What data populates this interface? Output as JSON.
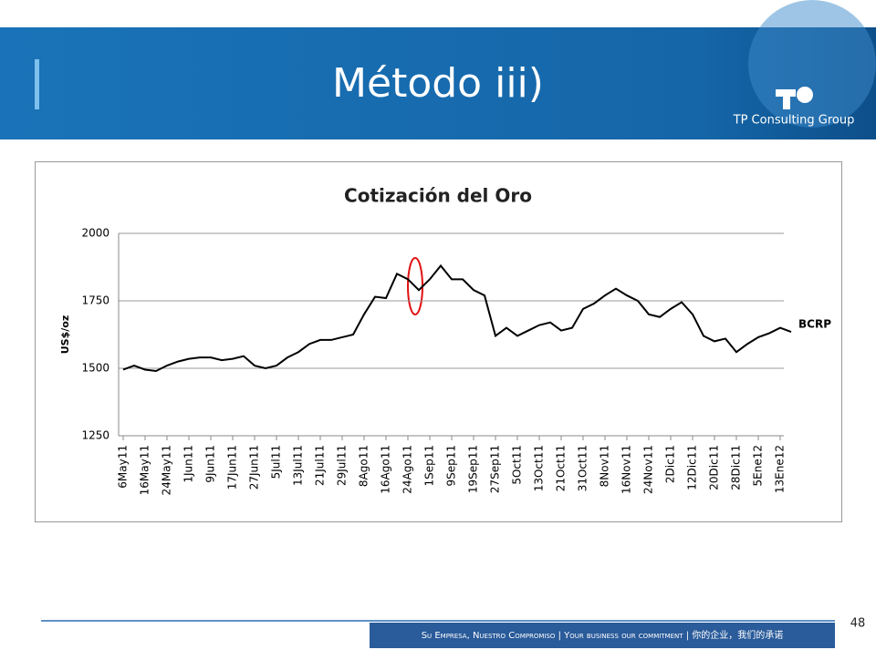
{
  "slide": {
    "title": "Método iii)",
    "logo": "TP Consulting Group",
    "page_number": "48",
    "footer": "Su Empresa, Nuestro Compromiso | Your business our commitment | 你的企业，我们的承诺"
  },
  "chart_data": {
    "type": "line",
    "title": "Cotización del Oro",
    "ylabel": "US$/oz",
    "categories": [
      "6May11",
      null,
      "16May11",
      null,
      "24May11",
      null,
      "1Jun11",
      null,
      "9Jun11",
      null,
      "17Jun11",
      null,
      "27Jun11",
      null,
      "5Jul11",
      null,
      "13Jul11",
      null,
      "21Jul11",
      null,
      "29Jul11",
      null,
      "8Ago11",
      null,
      "16Ago11",
      null,
      "24Ago11",
      null,
      "1Sep11",
      null,
      "9Sep11",
      null,
      "19Sep11",
      null,
      "27Sep11",
      null,
      "5Oct11",
      null,
      "13Oct11",
      null,
      "21Oct11",
      null,
      "31Oct11",
      null,
      "8Nov11",
      null,
      "16Nov11",
      null,
      "24Nov11",
      null,
      "2Dic11",
      null,
      "12Dic11",
      null,
      "20Dic11",
      null,
      "28Dic11",
      null,
      "5Ene12",
      null,
      "13Ene12",
      null
    ],
    "series": [
      {
        "name": "BCRP",
        "color": "#000000",
        "values": [
          1495,
          1510,
          1495,
          1490,
          1510,
          1525,
          1535,
          1540,
          1540,
          1530,
          1535,
          1545,
          1510,
          1500,
          1510,
          1540,
          1560,
          1590,
          1605,
          1605,
          1615,
          1625,
          1700,
          1765,
          1760,
          1850,
          1830,
          1790,
          1830,
          1880,
          1830,
          1830,
          1790,
          1770,
          1620,
          1650,
          1620,
          1640,
          1660,
          1670,
          1640,
          1650,
          1720,
          1740,
          1770,
          1795,
          1770,
          1750,
          1700,
          1690,
          1720,
          1745,
          1700,
          1620,
          1600,
          1610,
          1560,
          1590,
          1615,
          1630,
          1650,
          1635
        ]
      }
    ],
    "ylim": [
      1250,
      2000
    ],
    "yticks": [
      1250,
      1500,
      1750,
      2000
    ],
    "grid": true
  }
}
